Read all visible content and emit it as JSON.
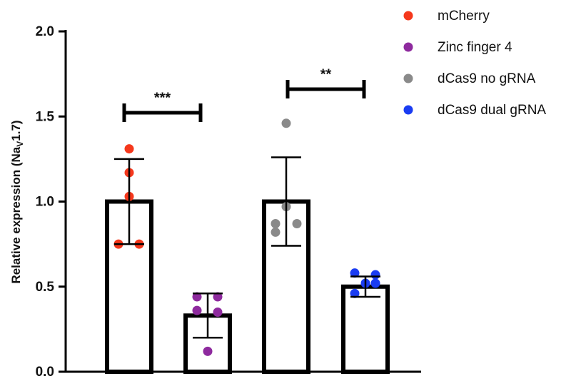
{
  "chart_data": {
    "type": "bar",
    "y_label": {
      "text": "Relative expression  (Na",
      "subscript": "V",
      "suffix": "1.7)"
    },
    "ylim": [
      0,
      2
    ],
    "yticks": [
      {
        "value": 0,
        "label": "0.0"
      },
      0.5,
      {
        "value": 1,
        "label": "1.0"
      },
      1.5,
      {
        "value": 2,
        "label": "2.0"
      }
    ],
    "legend": "upper right",
    "series": [
      {
        "name": "mCherry",
        "color": "#f5381c",
        "values": [
          1.0
        ],
        "errors": [
          0.25
        ],
        "points": [
          1.31,
          1.17,
          1.03,
          0.75,
          0.75
        ]
      },
      {
        "name": "Zinc finger 4",
        "color": "#8e2a9e",
        "values": [
          0.33
        ],
        "errors": [
          0.13
        ],
        "points": [
          0.44,
          0.44,
          0.36,
          0.35,
          0.12
        ]
      },
      {
        "name": "dCas9 no gRNA",
        "color": "#8a8a8a",
        "values": [
          1.0
        ],
        "errors": [
          0.26
        ],
        "points": [
          1.46,
          0.97,
          0.87,
          0.87,
          0.82
        ]
      },
      {
        "name": "dCas9 dual gRNA",
        "color": "#1a3cf2",
        "values": [
          0.5
        ],
        "errors": [
          0.06
        ],
        "points": [
          0.58,
          0.57,
          0.52,
          0.52,
          0.46
        ]
      }
    ],
    "annotations": [
      "***",
      "**"
    ]
  }
}
